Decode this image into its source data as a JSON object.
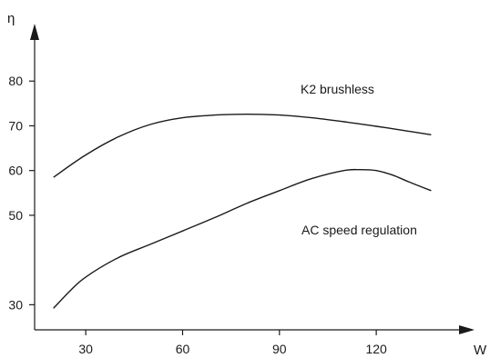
{
  "chart_data": {
    "type": "line",
    "title": "",
    "xlabel": "W",
    "ylabel": "η",
    "xlim": [
      15,
      140
    ],
    "ylim": [
      25,
      90
    ],
    "x_ticks": [
      30,
      60,
      90,
      120
    ],
    "y_ticks": [
      30,
      50,
      60,
      70,
      80
    ],
    "grid": false,
    "legend": "none",
    "series": [
      {
        "name": "K2 brushless",
        "x": [
          20,
          30,
          40,
          50,
          60,
          70,
          80,
          90,
          100,
          110,
          120,
          130,
          137
        ],
        "y": [
          58.5,
          63.5,
          67.5,
          70.3,
          71.8,
          72.4,
          72.6,
          72.4,
          71.8,
          70.9,
          69.9,
          68.8,
          68.0
        ]
      },
      {
        "name": "AC speed regulation",
        "x": [
          20,
          25,
          30,
          40,
          50,
          60,
          70,
          80,
          90,
          100,
          110,
          115,
          120,
          125,
          130,
          137
        ],
        "y": [
          29.2,
          33.0,
          36.2,
          40.5,
          43.5,
          46.5,
          49.5,
          52.7,
          55.5,
          58.2,
          60.0,
          60.2,
          60.0,
          59.0,
          57.5,
          55.5
        ]
      }
    ]
  }
}
